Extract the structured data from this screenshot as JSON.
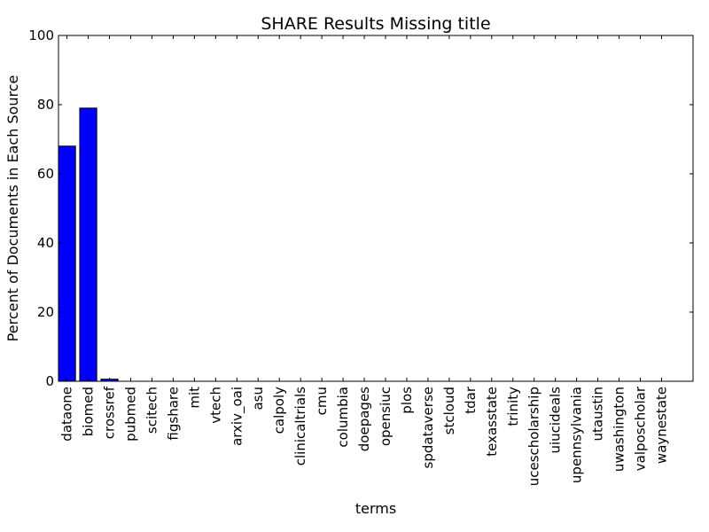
{
  "chart_data": {
    "type": "bar",
    "title": "SHARE Results Missing title",
    "xlabel": "terms",
    "ylabel": "Percent of Documents in Each Source",
    "ylim": [
      0,
      100
    ],
    "yticks": [
      0,
      20,
      40,
      60,
      80,
      100
    ],
    "grid": false,
    "bar_color": "#0000ff",
    "categories": [
      "dataone",
      "biomed",
      "crossref",
      "pubmed",
      "scitech",
      "figshare",
      "mit",
      "vtech",
      "arxiv_oai",
      "asu",
      "calpoly",
      "clinicaltrials",
      "cmu",
      "columbia",
      "doepages",
      "opensiuc",
      "plos",
      "spdataverse",
      "stcloud",
      "tdar",
      "texasstate",
      "trinity",
      "ucescholarship",
      "uiucideals",
      "upennsylvania",
      "utaustin",
      "uwashington",
      "valposcholar",
      "waynestate"
    ],
    "values": [
      68,
      79,
      0.6,
      0,
      0,
      0,
      0,
      0,
      0,
      0,
      0,
      0,
      0,
      0,
      0,
      0,
      0,
      0,
      0,
      0,
      0,
      0,
      0,
      0,
      0,
      0,
      0,
      0,
      0
    ]
  }
}
